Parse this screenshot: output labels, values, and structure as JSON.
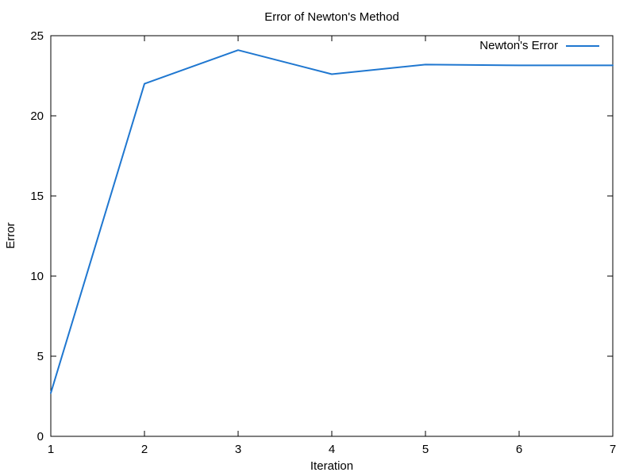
{
  "chart_data": {
    "type": "line",
    "title": "Error of Newton's Method",
    "xlabel": "Iteration",
    "ylabel": "Error",
    "xlim": [
      1,
      7
    ],
    "ylim": [
      0,
      25
    ],
    "xticks": [
      1,
      2,
      3,
      4,
      5,
      6,
      7
    ],
    "yticks": [
      0,
      5,
      10,
      15,
      20,
      25
    ],
    "grid": false,
    "legend_position": "top-right",
    "series": [
      {
        "name": "Newton's Error",
        "color": "#1f77d0",
        "x": [
          1,
          2,
          3,
          4,
          5,
          6,
          7
        ],
        "y": [
          2.7,
          22.0,
          24.1,
          22.6,
          23.2,
          23.15,
          23.15
        ]
      }
    ]
  }
}
